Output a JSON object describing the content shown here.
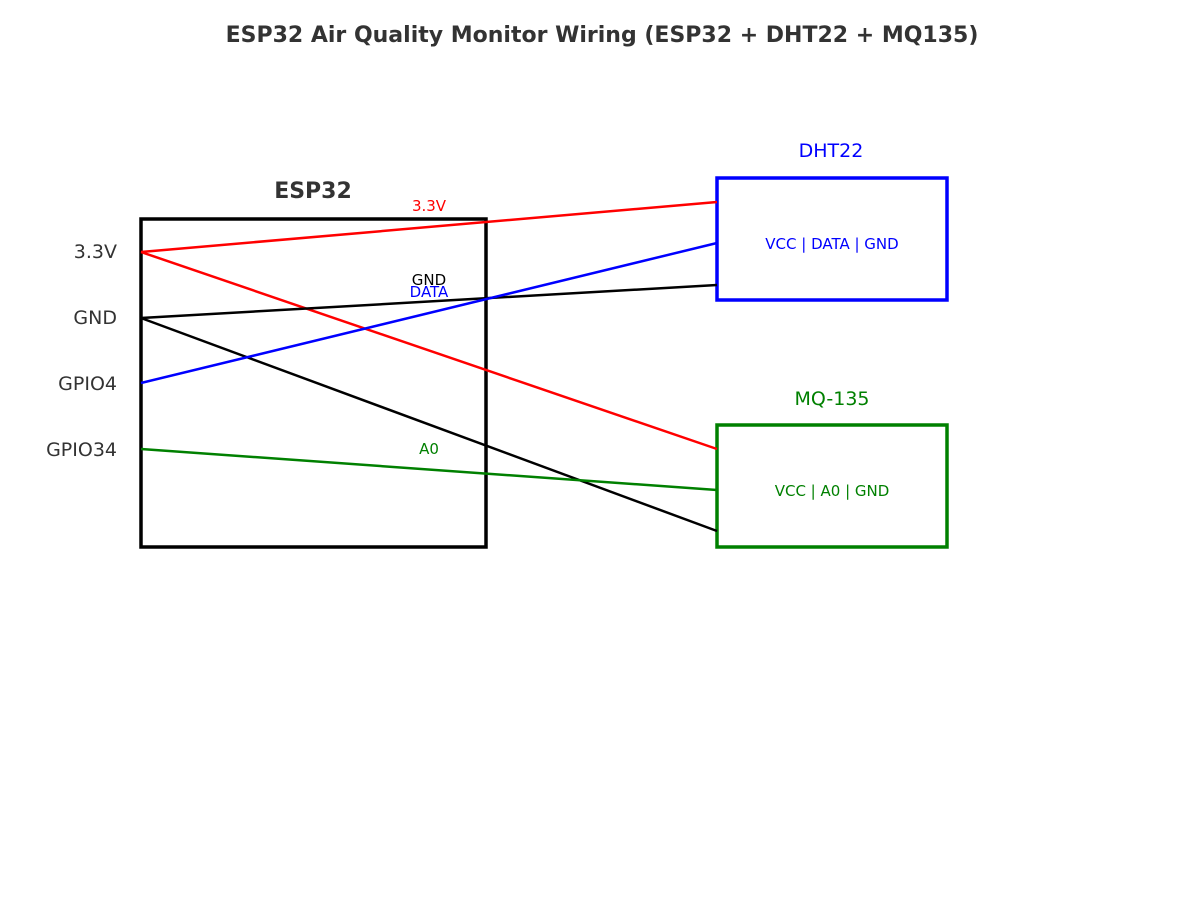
{
  "title": "ESP32 Air Quality Monitor Wiring (ESP32 + DHT22 + MQ135)",
  "esp32": {
    "label": "ESP32",
    "pins": [
      "3.3V",
      "GND",
      "GPIO4",
      "GPIO34"
    ]
  },
  "modules": {
    "dht22": {
      "label": "DHT22",
      "pins_text": "VCC | DATA | GND",
      "color": "#0000ff"
    },
    "mq135": {
      "label": "MQ-135",
      "pins_text": "VCC | A0 | GND",
      "color": "#008000"
    }
  },
  "wires": [
    {
      "from": "3.3V",
      "to": "DHT22 VCC",
      "label": "3.3V",
      "color": "#ff0000"
    },
    {
      "from": "GPIO4",
      "to": "DHT22 DATA",
      "label": "DATA",
      "color": "#0000ff"
    },
    {
      "from": "GND",
      "to": "DHT22 GND",
      "label": "GND",
      "color": "#000000"
    },
    {
      "from": "3.3V",
      "to": "MQ-135 VCC",
      "label": "",
      "color": "#ff0000"
    },
    {
      "from": "GPIO34",
      "to": "MQ-135 A0",
      "label": "A0",
      "color": "#008000"
    },
    {
      "from": "GND",
      "to": "MQ-135 GND",
      "label": "",
      "color": "#000000"
    }
  ]
}
